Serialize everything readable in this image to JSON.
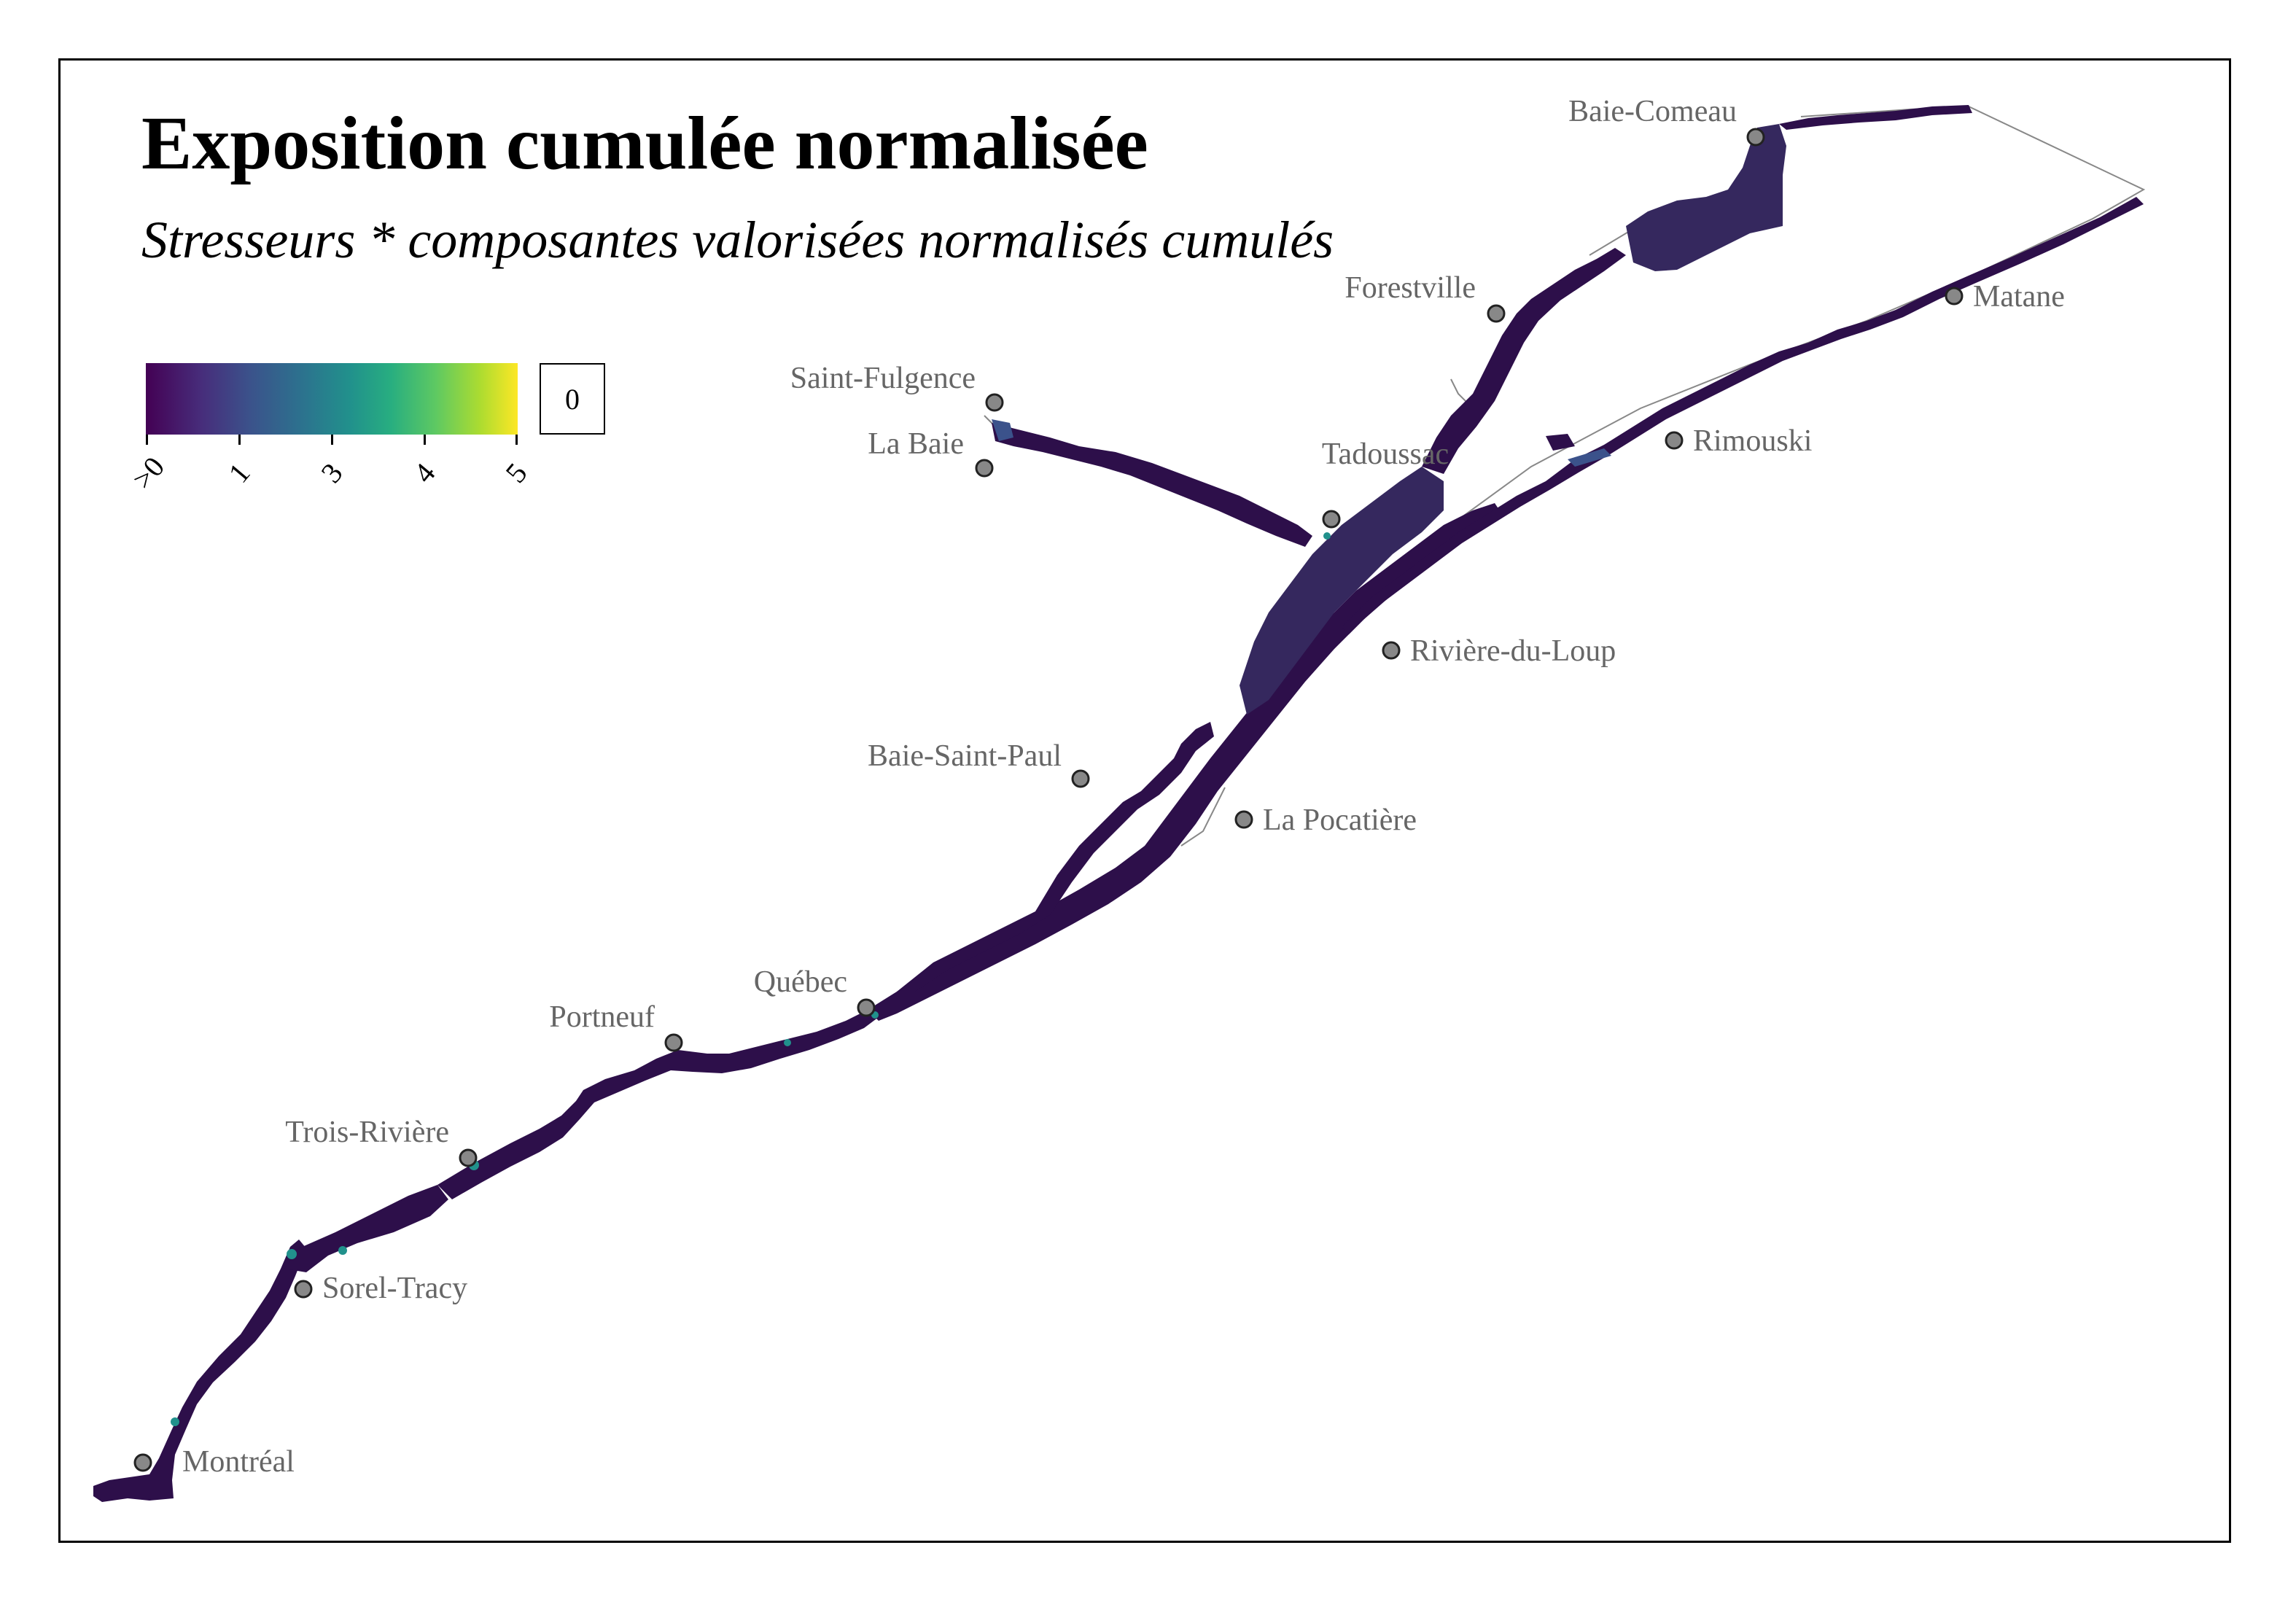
{
  "title": "Exposition cumulée normalisée",
  "subtitle": "Stresseurs * composantes valorisées normalisés cumulés",
  "legend": {
    "colors": [
      "#440154",
      "#3b528b",
      "#21918c",
      "#5ec962",
      "#fde725"
    ],
    "tick_labels": [
      ">0",
      "1",
      "3",
      "4",
      "5"
    ],
    "na_label": "0"
  },
  "cities": [
    {
      "name": "Montréal"
    },
    {
      "name": "Sorel-Tracy"
    },
    {
      "name": "Trois-Rivière"
    },
    {
      "name": "Portneuf"
    },
    {
      "name": "Québec"
    },
    {
      "name": "Baie-Saint-Paul"
    },
    {
      "name": "La Pocatière"
    },
    {
      "name": "Rivière-du-Loup"
    },
    {
      "name": "Tadoussac"
    },
    {
      "name": "La Baie"
    },
    {
      "name": "Saint-Fulgence"
    },
    {
      "name": "Forestville"
    },
    {
      "name": "Baie-Comeau"
    },
    {
      "name": "Rimouski"
    },
    {
      "name": "Matane"
    }
  ],
  "map_colors": {
    "water_dark": "#2d0f4a",
    "water_mid": "#35285e",
    "water_blue": "#3b528b",
    "coast": "#888888",
    "city_marker": "#888888"
  }
}
